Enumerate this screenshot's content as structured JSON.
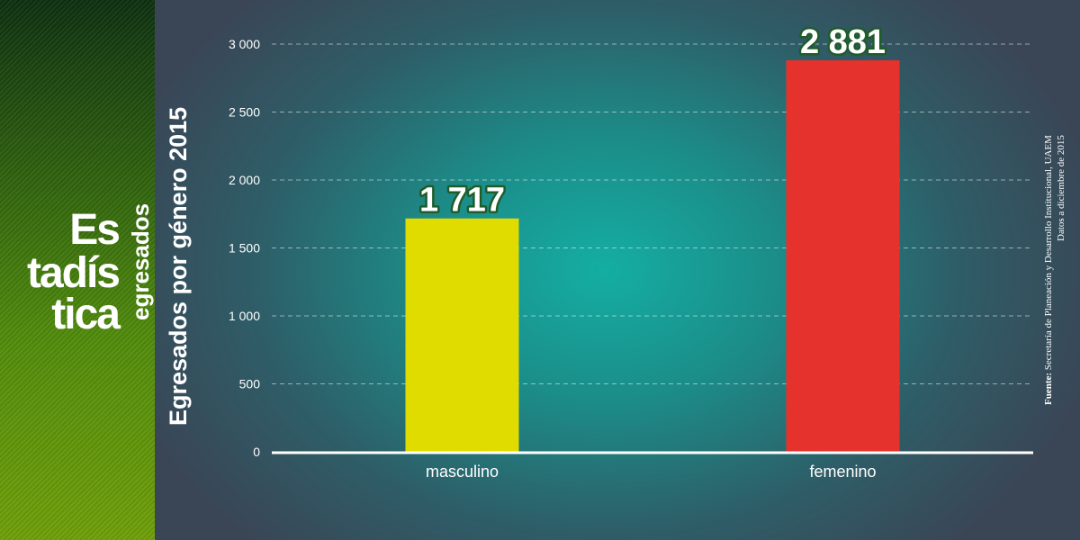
{
  "sidebar": {
    "logo_line1": "Es",
    "logo_line2": "tadís",
    "logo_line3": "tica",
    "logo_subtitle": "egresados"
  },
  "source": {
    "label": "Fuente:",
    "text": "Secretaría de Planeación y Desarrollo Institucional, UAEM",
    "date_note": "Datos a diciembre de 2015"
  },
  "colors": {
    "masculino": "#e0dc00",
    "femenino": "#e5322d",
    "value_label_stroke": "#1e5c2a"
  },
  "chart_data": {
    "type": "bar",
    "ylabel": "Egresados por género 2015",
    "categories": [
      "masculino",
      "femenino"
    ],
    "values": [
      1717,
      2881
    ],
    "value_labels": [
      "1 717",
      "2 881"
    ],
    "yticks": [
      0,
      500,
      1000,
      1500,
      2000,
      2500,
      3000
    ],
    "ytick_labels": [
      "0",
      "500",
      "1 000",
      "1 500",
      "2 000",
      "2 500",
      "3 000"
    ],
    "ylim": [
      0,
      3000
    ],
    "grid": true
  }
}
